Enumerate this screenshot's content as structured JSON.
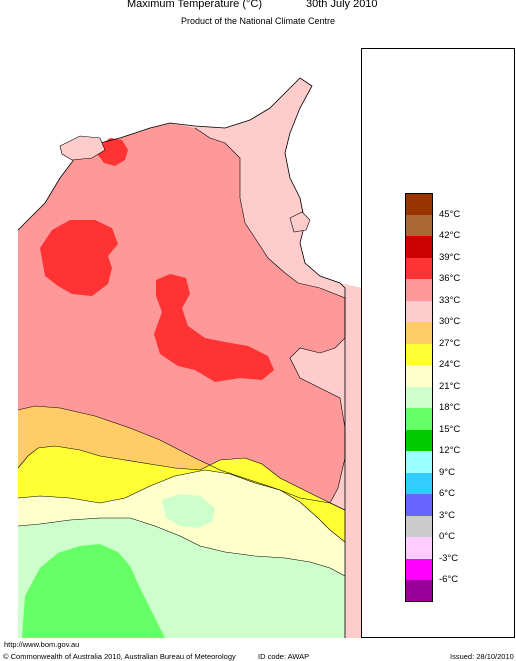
{
  "header": {
    "title": "Maximum Temperature (°C)",
    "date": "30th July 2010",
    "subtitle": "Product of the National Climate Centre"
  },
  "legend": {
    "labels": [
      "45°C",
      "42°C",
      "39°C",
      "36°C",
      "33°C",
      "30°C",
      "27°C",
      "24°C",
      "21°C",
      "18°C",
      "15°C",
      "12°C",
      "9°C",
      "6°C",
      "3°C",
      "0°C",
      "-3°C",
      "-6°C"
    ],
    "colors": [
      "#993300",
      "#aa6633",
      "#cc0000",
      "#ff3333",
      "#ff9999",
      "#ffcccc",
      "#ffcc66",
      "#ffff33",
      "#ffffcc",
      "#ccffcc",
      "#66ff66",
      "#00cc00",
      "#99ffff",
      "#33ccff",
      "#6666ff",
      "#cccccc",
      "#ffccff",
      "#ff00ff",
      "#990099"
    ]
  },
  "map_colors": {
    "ocean": "#ffffff",
    "t30": "#ffcccc",
    "t33": "#ff9999",
    "t36": "#ff3333",
    "t27": "#ffcc66",
    "t24": "#ffff33",
    "t21": "#ffffcc",
    "t18": "#ccffcc",
    "t15": "#66ff66"
  },
  "footer": {
    "url": "http://www.bom.gov.au",
    "copyright": "© Commonwealth of Australia 2010, Australian Bureau of Meteorology",
    "id_code": "ID code: AWAP",
    "issued": "Issued: 28/10/2010"
  }
}
